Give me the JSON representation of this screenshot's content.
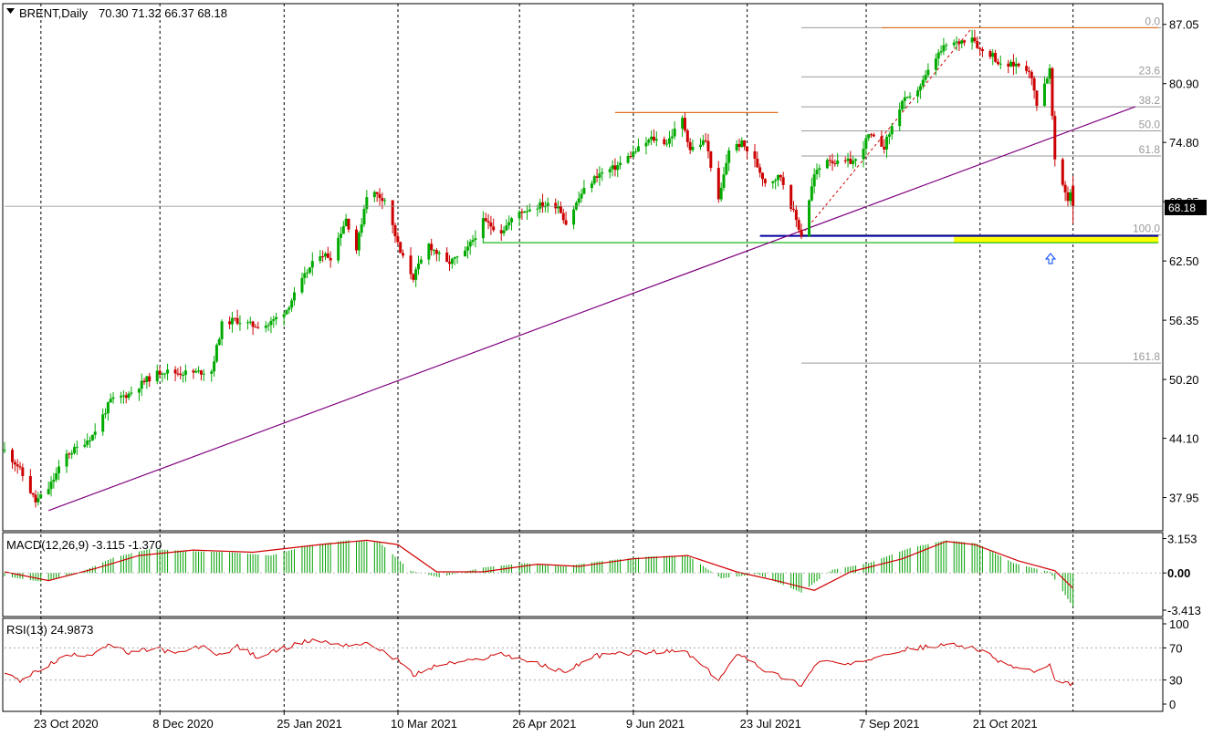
{
  "header": {
    "symbol": "BRENT,Daily",
    "ohlc": "70.30 71.32 66.37 68.18",
    "menu_icon": "triangle-down-icon"
  },
  "colors": {
    "bull": "#00aa00",
    "bear": "#cc0000",
    "trendline": "#800080",
    "resistance": "#e07020",
    "support_blue": "#0000a0",
    "support_green": "#00b000",
    "highlight": "#ffff00",
    "fib": "#9a9a9a",
    "macd_hist": "#00a000",
    "macd_signal": "#d00000",
    "rsi": "#d00000",
    "arrow": "#0040ff"
  },
  "chart_data": [
    {
      "type": "candlestick",
      "title": "BRENT,Daily",
      "ohlc_last": {
        "open": 70.3,
        "high": 71.32,
        "low": 66.37,
        "close": 68.18
      },
      "current_price_label": "68.18",
      "y_ticks": [
        "87.05",
        "80.90",
        "74.80",
        "68.65",
        "62.50",
        "56.35",
        "50.20",
        "44.10",
        "37.95"
      ],
      "x_ticks": [
        "23 Oct 2020",
        "8 Dec 2020",
        "25 Jan 2021",
        "10 Mar 2021",
        "26 Apr 2021",
        "9 Jun 2021",
        "23 Jul 2021",
        "7 Sep 2021",
        "21 Oct 2021"
      ],
      "ylim": [
        34.5,
        89.2
      ],
      "grid": "vertical-dashed",
      "close_path": [
        [
          "2020-10-16",
          42.8
        ],
        [
          "2020-10-21",
          41.3
        ],
        [
          "2020-10-28",
          37.5
        ],
        [
          "2020-11-02",
          38.9
        ],
        [
          "2020-11-09",
          42.4
        ],
        [
          "2020-11-13",
          43.1
        ],
        [
          "2020-11-19",
          44.4
        ],
        [
          "2020-11-26",
          48.0
        ],
        [
          "2020-12-03",
          48.7
        ],
        [
          "2020-12-10",
          50.2
        ],
        [
          "2020-12-16",
          51.1
        ],
        [
          "2020-12-21",
          50.9
        ],
        [
          "2020-12-28",
          50.9
        ],
        [
          "2021-01-04",
          51.1
        ],
        [
          "2021-01-08",
          55.9
        ],
        [
          "2021-01-13",
          56.4
        ],
        [
          "2021-01-20",
          55.8
        ],
        [
          "2021-01-26",
          55.9
        ],
        [
          "2021-02-02",
          57.5
        ],
        [
          "2021-02-10",
          61.4
        ],
        [
          "2021-02-15",
          63.3
        ],
        [
          "2021-02-19",
          62.9
        ],
        [
          "2021-02-25",
          66.9
        ],
        [
          "2021-03-01",
          63.7
        ],
        [
          "2021-03-05",
          69.4
        ],
        [
          "2021-03-08",
          69.5
        ],
        [
          "2021-03-12",
          68.9
        ],
        [
          "2021-03-18",
          63.3
        ],
        [
          "2021-03-23",
          60.8
        ],
        [
          "2021-03-29",
          64.2
        ],
        [
          "2021-04-05",
          62.2
        ],
        [
          "2021-04-12",
          63.3
        ],
        [
          "2021-04-19",
          66.6
        ],
        [
          "2021-04-26",
          65.6
        ],
        [
          "2021-05-03",
          67.6
        ],
        [
          "2021-05-11",
          68.3
        ],
        [
          "2021-05-18",
          68.3
        ],
        [
          "2021-05-21",
          66.4
        ],
        [
          "2021-05-27",
          69.5
        ],
        [
          "2021-06-02",
          71.4
        ],
        [
          "2021-06-09",
          72.2
        ],
        [
          "2021-06-16",
          73.7
        ],
        [
          "2021-06-23",
          75.2
        ],
        [
          "2021-06-29",
          74.8
        ],
        [
          "2021-07-05",
          77.2
        ],
        [
          "2021-07-08",
          74.1
        ],
        [
          "2021-07-14",
          75.0
        ],
        [
          "2021-07-19",
          68.6
        ],
        [
          "2021-07-23",
          74.1
        ],
        [
          "2021-07-28",
          74.7
        ],
        [
          "2021-08-02",
          72.9
        ],
        [
          "2021-08-06",
          70.7
        ],
        [
          "2021-08-12",
          71.3
        ],
        [
          "2021-08-20",
          65.2
        ],
        [
          "2021-08-25",
          71.4
        ],
        [
          "2021-08-30",
          73.2
        ],
        [
          "2021-09-03",
          72.6
        ],
        [
          "2021-09-10",
          72.9
        ],
        [
          "2021-09-15",
          75.5
        ],
        [
          "2021-09-21",
          74.4
        ],
        [
          "2021-09-28",
          79.1
        ],
        [
          "2021-10-01",
          79.3
        ],
        [
          "2021-10-06",
          81.1
        ],
        [
          "2021-10-11",
          83.6
        ],
        [
          "2021-10-15",
          84.9
        ],
        [
          "2021-10-19",
          85.1
        ],
        [
          "2021-10-25",
          85.9
        ],
        [
          "2021-10-28",
          84.4
        ],
        [
          "2021-11-02",
          83.9
        ],
        [
          "2021-11-05",
          82.7
        ],
        [
          "2021-11-11",
          82.9
        ],
        [
          "2021-11-16",
          82.4
        ],
        [
          "2021-11-19",
          78.9
        ],
        [
          "2021-11-24",
          82.3
        ],
        [
          "2021-11-26",
          72.7
        ],
        [
          "2021-12-01",
          68.9
        ],
        [
          "2021-12-02",
          69.7
        ],
        [
          "2021-12-03",
          68.18
        ]
      ],
      "horizontal_lines": [
        {
          "kind": "resistance",
          "price": 86.7,
          "from": "2021-09-20",
          "to": "2022-01-05"
        },
        {
          "kind": "resistance",
          "price": 77.9,
          "from": "2021-06-09",
          "to": "2021-08-11"
        },
        {
          "kind": "support",
          "price": 65.1,
          "from": "2021-08-04",
          "to": "2022-01-05"
        },
        {
          "kind": "support",
          "price": 64.4,
          "from": "2021-04-19",
          "to": "2022-01-05"
        }
      ],
      "highlight_zone": {
        "from": "2021-10-18",
        "to": "2022-01-05",
        "price_top": 65.1,
        "price_bottom": 64.4
      },
      "trendline": {
        "x1": "2020-11-02",
        "y1": 36.6,
        "x2": "2022-01-05",
        "y2": 79.4
      },
      "fibonacci": {
        "from_date": "2021-08-20",
        "from_price": 65.2,
        "to_date": "2021-10-25",
        "to_price": 86.7,
        "levels": [
          {
            "ratio": 0.0,
            "label": "0.0",
            "price": 86.7
          },
          {
            "ratio": 0.236,
            "label": "23.6",
            "price": 81.6
          },
          {
            "ratio": 0.382,
            "label": "38.2",
            "price": 78.5
          },
          {
            "ratio": 0.5,
            "label": "50.0",
            "price": 76.0
          },
          {
            "ratio": 0.618,
            "label": "61.8",
            "price": 73.4
          },
          {
            "ratio": 1.0,
            "label": "100.0",
            "price": 65.2
          },
          {
            "ratio": 1.618,
            "label": "161.8",
            "price": 51.9
          }
        ]
      },
      "annotation_icon": "up-arrow-icon"
    },
    {
      "type": "histogram+line",
      "title": "MACD(12,26,9) -3.115 -1.370",
      "y_ticks": [
        "3.153",
        "0.00",
        "-3.413"
      ],
      "ylim": [
        -4.0,
        3.7
      ],
      "histogram": [
        [
          "2020-10-16",
          -0.3
        ],
        [
          "2020-10-30",
          -0.8
        ],
        [
          "2020-11-13",
          -0.1
        ],
        [
          "2020-11-27",
          1.4
        ],
        [
          "2020-12-11",
          2.2
        ],
        [
          "2020-12-28",
          2.0
        ],
        [
          "2021-01-11",
          1.9
        ],
        [
          "2021-01-27",
          1.6
        ],
        [
          "2021-02-10",
          2.5
        ],
        [
          "2021-02-26",
          3.0
        ],
        [
          "2021-03-10",
          2.8
        ],
        [
          "2021-03-22",
          0.2
        ],
        [
          "2021-04-02",
          -0.4
        ],
        [
          "2021-04-19",
          0.5
        ],
        [
          "2021-05-05",
          0.9
        ],
        [
          "2021-05-20",
          0.6
        ],
        [
          "2021-06-04",
          1.1
        ],
        [
          "2021-06-21",
          1.5
        ],
        [
          "2021-07-07",
          1.6
        ],
        [
          "2021-07-20",
          -0.5
        ],
        [
          "2021-08-03",
          -0.1
        ],
        [
          "2021-08-20",
          -1.8
        ],
        [
          "2021-09-01",
          0.3
        ],
        [
          "2021-09-15",
          0.9
        ],
        [
          "2021-10-01",
          2.3
        ],
        [
          "2021-10-15",
          3.0
        ],
        [
          "2021-10-27",
          2.7
        ],
        [
          "2021-11-10",
          0.9
        ],
        [
          "2021-11-24",
          0.1
        ],
        [
          "2021-12-03",
          -3.1
        ]
      ],
      "signal": [
        [
          "2020-10-16",
          0.1
        ],
        [
          "2020-11-02",
          -0.7
        ],
        [
          "2020-11-20",
          0.4
        ],
        [
          "2020-12-07",
          1.6
        ],
        [
          "2020-12-28",
          2.1
        ],
        [
          "2021-01-20",
          1.9
        ],
        [
          "2021-02-15",
          2.6
        ],
        [
          "2021-03-05",
          3.0
        ],
        [
          "2021-03-17",
          2.6
        ],
        [
          "2021-04-01",
          0.1
        ],
        [
          "2021-04-19",
          0.1
        ],
        [
          "2021-05-10",
          0.8
        ],
        [
          "2021-05-26",
          0.6
        ],
        [
          "2021-06-16",
          1.3
        ],
        [
          "2021-07-07",
          1.6
        ],
        [
          "2021-07-26",
          0.1
        ],
        [
          "2021-08-12",
          -0.8
        ],
        [
          "2021-08-25",
          -1.6
        ],
        [
          "2021-09-08",
          0.1
        ],
        [
          "2021-09-28",
          1.3
        ],
        [
          "2021-10-15",
          2.9
        ],
        [
          "2021-10-26",
          2.6
        ],
        [
          "2021-11-12",
          1.1
        ],
        [
          "2021-11-26",
          0.2
        ],
        [
          "2021-12-03",
          -1.4
        ]
      ]
    },
    {
      "type": "line",
      "title": "RSI(13) 24.9873",
      "y_ticks": [
        "100",
        "70",
        "30",
        "0"
      ],
      "ylim": [
        0,
        100
      ],
      "values": [
        [
          "2020-10-16",
          40
        ],
        [
          "2020-10-22",
          28
        ],
        [
          "2020-10-30",
          44
        ],
        [
          "2020-11-09",
          60
        ],
        [
          "2020-11-19",
          63
        ],
        [
          "2020-11-25",
          75
        ],
        [
          "2020-12-03",
          63
        ],
        [
          "2020-12-14",
          70
        ],
        [
          "2020-12-21",
          62
        ],
        [
          "2020-12-31",
          72
        ],
        [
          "2021-01-07",
          61
        ],
        [
          "2021-01-14",
          72
        ],
        [
          "2021-01-22",
          58
        ],
        [
          "2021-02-01",
          70
        ],
        [
          "2021-02-12",
          80
        ],
        [
          "2021-02-23",
          74
        ],
        [
          "2021-03-04",
          75
        ],
        [
          "2021-03-10",
          69
        ],
        [
          "2021-03-18",
          52
        ],
        [
          "2021-03-23",
          36
        ],
        [
          "2021-04-02",
          49
        ],
        [
          "2021-04-15",
          54
        ],
        [
          "2021-04-26",
          63
        ],
        [
          "2021-05-06",
          54
        ],
        [
          "2021-05-20",
          40
        ],
        [
          "2021-06-01",
          60
        ],
        [
          "2021-06-16",
          64
        ],
        [
          "2021-06-28",
          65
        ],
        [
          "2021-07-06",
          66
        ],
        [
          "2021-07-19",
          30
        ],
        [
          "2021-07-27",
          64
        ],
        [
          "2021-08-06",
          42
        ],
        [
          "2021-08-20",
          24
        ],
        [
          "2021-08-27",
          55
        ],
        [
          "2021-09-08",
          48
        ],
        [
          "2021-09-21",
          64
        ],
        [
          "2021-10-04",
          70
        ],
        [
          "2021-10-18",
          74
        ],
        [
          "2021-10-26",
          70
        ],
        [
          "2021-11-08",
          48
        ],
        [
          "2021-11-19",
          40
        ],
        [
          "2021-11-24",
          48
        ],
        [
          "2021-11-26",
          27
        ],
        [
          "2021-12-03",
          25
        ]
      ]
    }
  ]
}
